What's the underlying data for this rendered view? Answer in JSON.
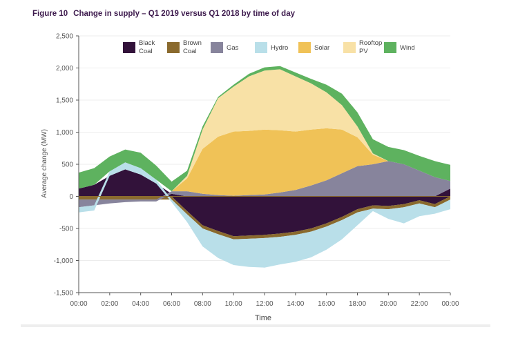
{
  "figure": {
    "number": "Figure 10",
    "title": "Change in supply – Q1 2019 versus Q1 2018 by time of day"
  },
  "chart_data": {
    "type": "area",
    "stacked": "diverging",
    "xlabel": "Time",
    "ylabel": "Average change (MW)",
    "ylim": [
      -1500,
      2500
    ],
    "yticks": [
      {
        "value": 2500,
        "label": "2,500"
      },
      {
        "value": 2000,
        "label": "2,000"
      },
      {
        "value": 1500,
        "label": "1,500"
      },
      {
        "value": 1000,
        "label": "1,000"
      },
      {
        "value": 500,
        "label": "500"
      },
      {
        "value": 0,
        "label": "0"
      },
      {
        "value": -500,
        "label": "-500"
      },
      {
        "value": -1000,
        "label": "-1,000"
      },
      {
        "value": -1500,
        "label": "-1,500"
      }
    ],
    "xticks": [
      "00:00",
      "02:00",
      "04:00",
      "06:00",
      "08:00",
      "10:00",
      "12:00",
      "14:00",
      "16:00",
      "18:00",
      "20:00",
      "22:00",
      "00:00"
    ],
    "grid": "horizontal",
    "legend": {
      "position": "top",
      "items": [
        {
          "label": [
            "Black",
            "Coal"
          ],
          "color": "#32123a"
        },
        {
          "label": [
            "Brown",
            "Coal"
          ],
          "color": "#8a6a2e"
        },
        {
          "label": [
            "Gas"
          ],
          "color": "#87849c"
        },
        {
          "label": [
            "Hydro"
          ],
          "color": "#b9dfe9"
        },
        {
          "label": [
            "Solar"
          ],
          "color": "#f0c257"
        },
        {
          "label": [
            "Rooftop",
            "PV"
          ],
          "color": "#f8e1a6"
        },
        {
          "label": [
            "Wind"
          ],
          "color": "#5eb25f"
        }
      ]
    },
    "x_hours": [
      0,
      1,
      2,
      3,
      4,
      5,
      6,
      7,
      8,
      9,
      10,
      11,
      12,
      13,
      14,
      15,
      16,
      17,
      18,
      19,
      20,
      21,
      22,
      23,
      24
    ],
    "series": [
      {
        "name": "Black Coal",
        "color": "#32123a",
        "values": [
          120,
          180,
          320,
          420,
          340,
          200,
          40,
          -230,
          -450,
          -540,
          -620,
          -610,
          -600,
          -580,
          -550,
          -500,
          -420,
          -320,
          -200,
          -140,
          -150,
          -120,
          -60,
          -120,
          120
        ]
      },
      {
        "name": "Brown Coal",
        "color": "#8a6a2e",
        "values": [
          -50,
          -50,
          -50,
          -50,
          -50,
          -50,
          -50,
          -50,
          -50,
          -50,
          -50,
          -50,
          -50,
          -50,
          -50,
          -50,
          -50,
          -50,
          -50,
          -50,
          -50,
          -50,
          -50,
          -50,
          -50
        ]
      },
      {
        "name": "Gas",
        "color": "#87849c",
        "values": [
          -120,
          -90,
          -60,
          -40,
          -30,
          -30,
          40,
          80,
          40,
          20,
          10,
          20,
          30,
          60,
          100,
          170,
          250,
          360,
          470,
          500,
          550,
          500,
          400,
          300,
          120
        ]
      },
      {
        "name": "Hydro",
        "color": "#b9dfe9",
        "values": [
          -80,
          -80,
          70,
          110,
          100,
          60,
          -40,
          -120,
          -280,
          -370,
          -400,
          -440,
          -460,
          -430,
          -420,
          -400,
          -360,
          -300,
          -200,
          -40,
          -150,
          -250,
          -200,
          -100,
          -150
        ]
      },
      {
        "name": "Solar",
        "color": "#f0c257",
        "values": [
          0,
          0,
          0,
          0,
          0,
          0,
          0,
          200,
          700,
          910,
          1000,
          1000,
          1010,
          970,
          910,
          870,
          810,
          680,
          450,
          150,
          0,
          0,
          0,
          0,
          0
        ]
      },
      {
        "name": "Rooftop PV",
        "color": "#f8e1a6",
        "values": [
          0,
          0,
          0,
          0,
          0,
          0,
          0,
          40,
          300,
          600,
          700,
          850,
          920,
          950,
          860,
          720,
          560,
          380,
          170,
          20,
          0,
          0,
          0,
          0,
          0
        ]
      },
      {
        "name": "Wind",
        "color": "#5eb25f",
        "values": [
          250,
          260,
          230,
          200,
          240,
          220,
          150,
          80,
          50,
          20,
          30,
          40,
          50,
          50,
          60,
          70,
          120,
          180,
          220,
          220,
          220,
          220,
          230,
          250,
          250
        ]
      }
    ]
  }
}
